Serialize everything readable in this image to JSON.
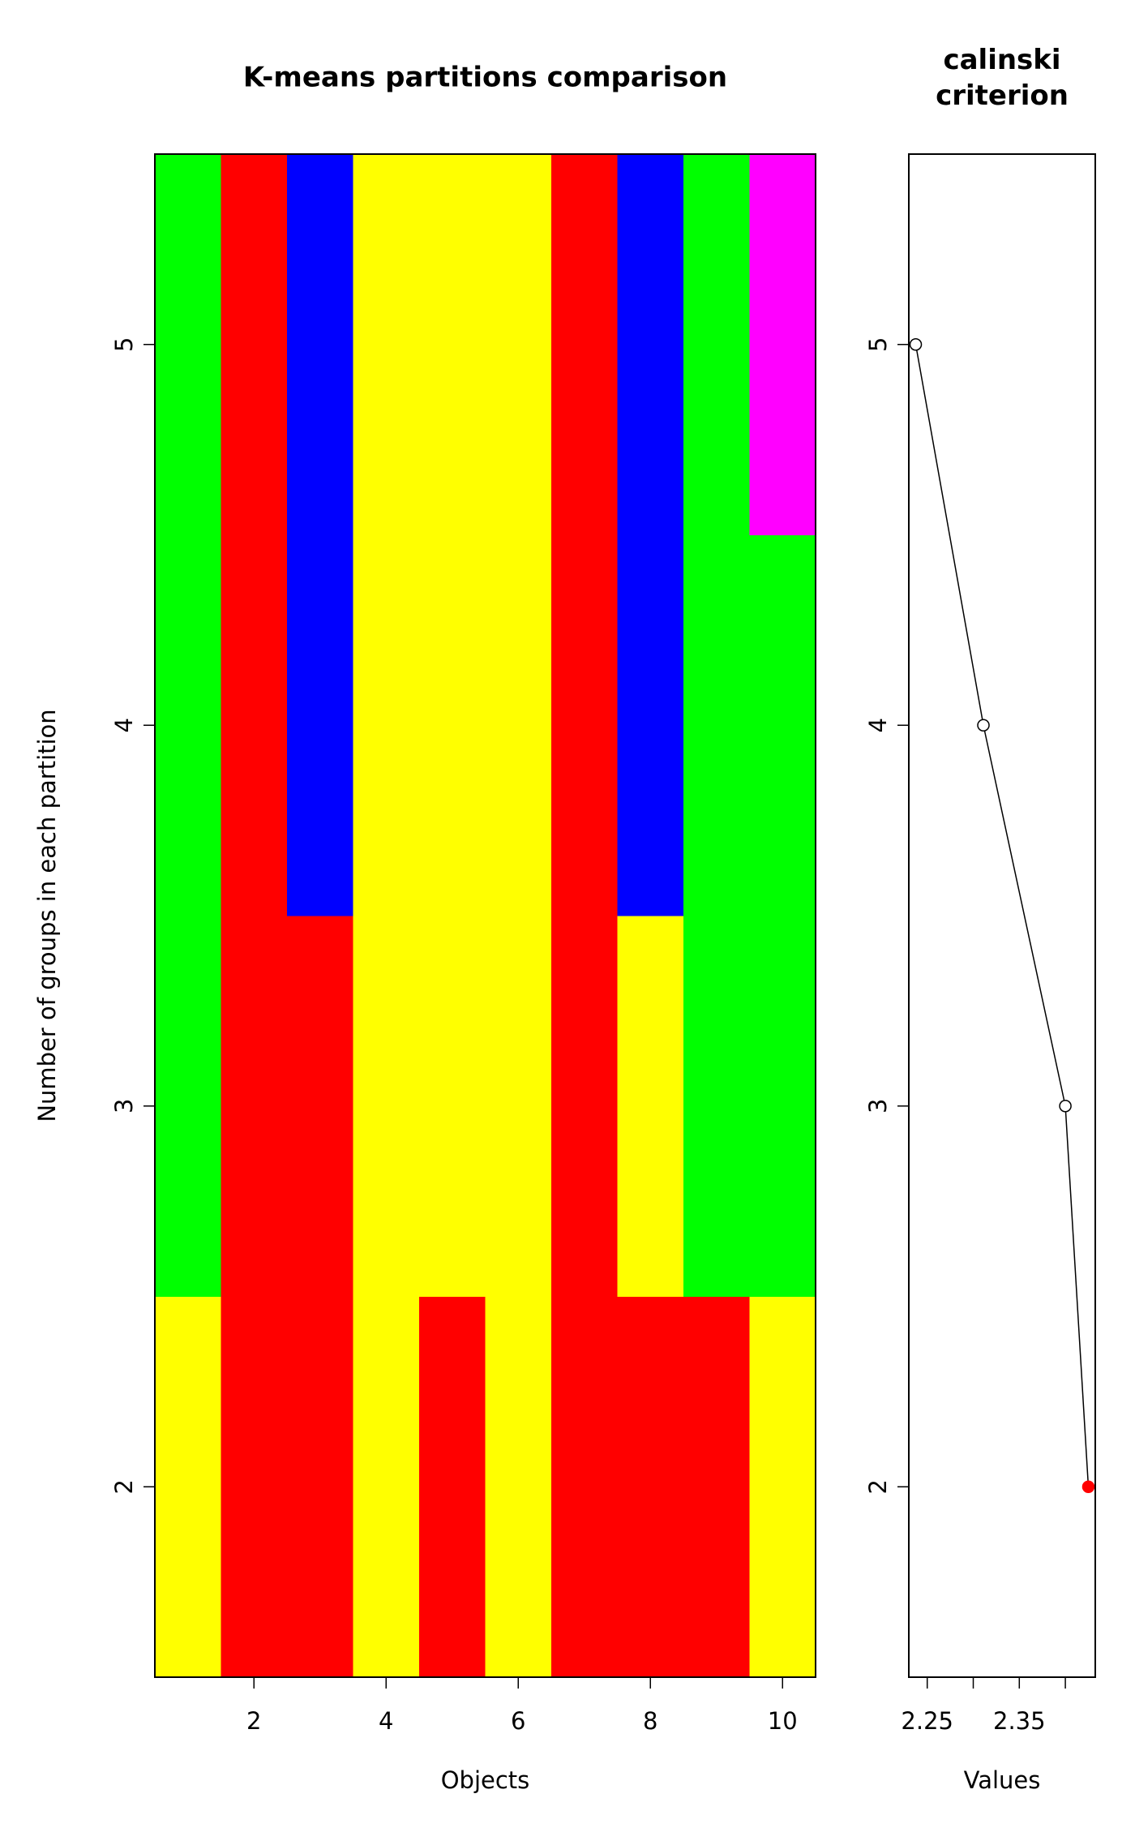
{
  "chart_data": [
    {
      "type": "heatmap",
      "title": "K-means partitions comparison",
      "xlabel": "Objects",
      "ylabel": "Number of groups in each partition",
      "x": [
        1,
        2,
        3,
        4,
        5,
        6,
        7,
        8,
        9,
        10
      ],
      "y": [
        2,
        3,
        4,
        5
      ],
      "values": [
        [
          2,
          1,
          1,
          2,
          1,
          2,
          1,
          1,
          1,
          2
        ],
        [
          3,
          1,
          1,
          2,
          2,
          2,
          1,
          2,
          3,
          3
        ],
        [
          3,
          1,
          4,
          2,
          2,
          2,
          1,
          4,
          3,
          3
        ],
        [
          3,
          1,
          4,
          2,
          2,
          2,
          1,
          4,
          3,
          5
        ]
      ],
      "palette": {
        "1": "#ff0000",
        "2": "#ffff00",
        "3": "#00ff00",
        "4": "#0000ff",
        "5": "#ff00ff"
      },
      "xlim": [
        0.5,
        10.5
      ],
      "xticks": [
        2,
        4,
        6,
        8,
        10
      ],
      "ylim": [
        1.5,
        5.5
      ],
      "yticks": [
        2,
        3,
        4,
        5
      ]
    },
    {
      "type": "line",
      "title": "calinski criterion",
      "xlabel": "Values",
      "y": [
        2,
        3,
        4,
        5
      ],
      "values": [
        2.425,
        2.4,
        2.311,
        2.2375
      ],
      "point_fill": [
        "#ff0000",
        "#ffffff",
        "#ffffff",
        "#ffffff"
      ],
      "xlim": [
        2.23,
        2.4325
      ],
      "xticks": [
        2.25,
        2.3,
        2.35,
        2.4
      ],
      "ylim": [
        1.5,
        5.5
      ],
      "yticks": [
        2,
        3,
        4,
        5
      ]
    }
  ]
}
